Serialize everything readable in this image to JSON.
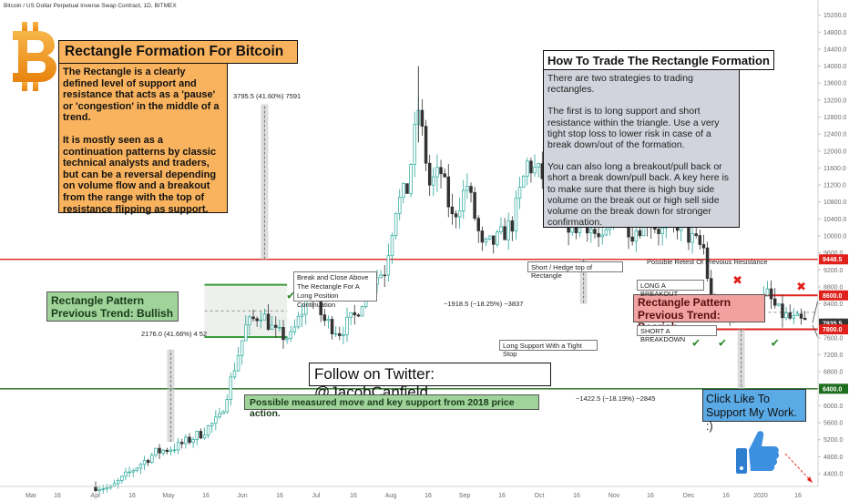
{
  "header": {
    "title": "Bitcoin / US Dollar Perpetual Inverse Swap Contract, 1D, BITMEX"
  },
  "colors": {
    "up": "#26a69a",
    "down": "#333333",
    "resistance": "#e0201b",
    "support": "#1f6e1f",
    "rect_green": "#3a9a3a",
    "rect_red": "#e0201b",
    "orange_box": "#f9b35e",
    "gray_box": "#d1d4dc",
    "green_box": "#9fd39a",
    "pink_box": "#f2a1a1",
    "blue_box": "#5aaae6",
    "price_tag_red": "#e0201b",
    "price_tag_green": "#1f6e1f",
    "price_tag_current": "#333333"
  },
  "left_panel": {
    "title": "Rectangle Formation For Bitcoin",
    "paragraphs": [
      "The Rectangle is a clearly defined level of support and resistance that acts as a 'pause' or 'congestion' in the middle of a trend.",
      "It is mostly seen as a continuation patterns by classic technical analysts and traders, but can be a reversal depending on volume flow and a breakout from the range with the top of resistance flipping as support."
    ]
  },
  "right_panel": {
    "title": "How To Trade The Rectangle Formation",
    "paragraphs": [
      "There are two strategies to trading rectangles.",
      "The first is to long support and short resistance within the triangle. Use a very tight stop loss to lower risk in case of a break down/out of the formation.",
      "You can also long a breakout/pull back or short a break down/pull back. A key here is to make sure that there is high buy side volume on the break out or high sell side volume on the break down for stronger confirmation."
    ]
  },
  "labels": {
    "bullish_box": [
      "Rectangle Pattern",
      "Previous Trend: Bullish"
    ],
    "bearish_box": [
      "Rectangle Pattern",
      "Previous Trend: Bearish"
    ],
    "twitter": "Follow on Twitter: @JacobCanfield",
    "support_note": "Possible measured move and key support from 2018 price action.",
    "click_like": [
      "Click Like To",
      "Support My Work. :)"
    ],
    "break_close": [
      "Break and Close Above",
      "The Rectangle For A",
      "Long Position Continuation"
    ],
    "short_hedge": "Short / Hedge top of Rectangle",
    "long_support": "Long Support With a Tight Stop",
    "long_breakout": "LONG A BREAKOUT",
    "short_breakdown": "SHORT A BREAKDOWN",
    "retest": "Possible Retest Of Prevoius Resistance",
    "measure_1": "3795.5 (41.60%) 7591",
    "measure_2": "2176.0 (41.66%) 4 52",
    "measure_3": "−1918.5 (−18.25%) −3837",
    "measure_4": "−1422.5 (−18.19%) −2845"
  },
  "chart_data": {
    "type": "candlestick",
    "title": "Bitcoin / US Dollar Perpetual Inverse Swap Contract, 1D, BITMEX",
    "xlabel": "",
    "ylabel": "",
    "x_ticks": [
      "Mar",
      "16",
      "Apr",
      "16",
      "May",
      "16",
      "Jun",
      "16",
      "Jul",
      "16",
      "Aug",
      "16",
      "Sep",
      "16",
      "Oct",
      "16",
      "Nov",
      "16",
      "Dec",
      "16",
      "2020",
      "16"
    ],
    "y_ticks": [
      15200,
      14800,
      14400,
      14000,
      13600,
      13200,
      12800,
      12400,
      12000,
      11600,
      11200,
      10800,
      10400,
      10000,
      9600,
      9200,
      8800,
      8400,
      8000,
      7600,
      7200,
      6800,
      6400,
      6000,
      5600,
      5200,
      4800,
      4400
    ],
    "ylim": [
      4100,
      15300
    ],
    "price_tags": [
      {
        "label": "9448.5",
        "value": 9448.5,
        "role": "resistance"
      },
      {
        "label": "8600.0",
        "value": 8600,
        "role": "rect_top"
      },
      {
        "label": "7935.5",
        "value": 7935.5,
        "role": "current"
      },
      {
        "label": "7800.0",
        "value": 7800,
        "role": "rect_bottom"
      },
      {
        "label": "6400.0",
        "value": 6400,
        "role": "support"
      }
    ],
    "levels": {
      "resistance": 9448.5,
      "support": 6400
    },
    "anchors": [
      {
        "x": 0,
        "y": 4100
      },
      {
        "x": 4,
        "y": 4050
      },
      {
        "x": 10,
        "y": 4500
      },
      {
        "x": 16,
        "y": 4900
      },
      {
        "x": 22,
        "y": 5050
      },
      {
        "x": 28,
        "y": 5350
      },
      {
        "x": 33,
        "y": 5700
      },
      {
        "x": 36,
        "y": 6600
      },
      {
        "x": 40,
        "y": 7850
      },
      {
        "x": 44,
        "y": 8200
      },
      {
        "x": 48,
        "y": 7700
      },
      {
        "x": 52,
        "y": 7600
      },
      {
        "x": 57,
        "y": 8650
      },
      {
        "x": 61,
        "y": 8000
      },
      {
        "x": 65,
        "y": 7750
      },
      {
        "x": 69,
        "y": 8100
      },
      {
        "x": 73,
        "y": 8900
      },
      {
        "x": 77,
        "y": 9200
      },
      {
        "x": 80,
        "y": 10700
      },
      {
        "x": 83,
        "y": 11100
      },
      {
        "x": 86,
        "y": 13000
      },
      {
        "x": 89,
        "y": 11200
      },
      {
        "x": 92,
        "y": 11500
      },
      {
        "x": 95,
        "y": 10400
      },
      {
        "x": 99,
        "y": 11200
      },
      {
        "x": 103,
        "y": 9700
      },
      {
        "x": 107,
        "y": 9900
      },
      {
        "x": 111,
        "y": 10300
      },
      {
        "x": 115,
        "y": 11700
      },
      {
        "x": 119,
        "y": 11400
      },
      {
        "x": 123,
        "y": 10600
      },
      {
        "x": 127,
        "y": 10200
      },
      {
        "x": 131,
        "y": 10300
      },
      {
        "x": 135,
        "y": 9800
      },
      {
        "x": 139,
        "y": 10600
      },
      {
        "x": 143,
        "y": 10100
      },
      {
        "x": 147,
        "y": 10400
      },
      {
        "x": 151,
        "y": 10100
      },
      {
        "x": 155,
        "y": 10300
      },
      {
        "x": 159,
        "y": 9900
      },
      {
        "x": 162,
        "y": 9700
      },
      {
        "x": 164,
        "y": 8400
      },
      {
        "x": 167,
        "y": 8100
      },
      {
        "x": 171,
        "y": 8300
      },
      {
        "x": 175,
        "y": 8200
      },
      {
        "x": 179,
        "y": 8600
      },
      {
        "x": 182,
        "y": 8200
      },
      {
        "x": 186,
        "y": 8000
      },
      {
        "x": 190,
        "y": 7940
      }
    ]
  }
}
